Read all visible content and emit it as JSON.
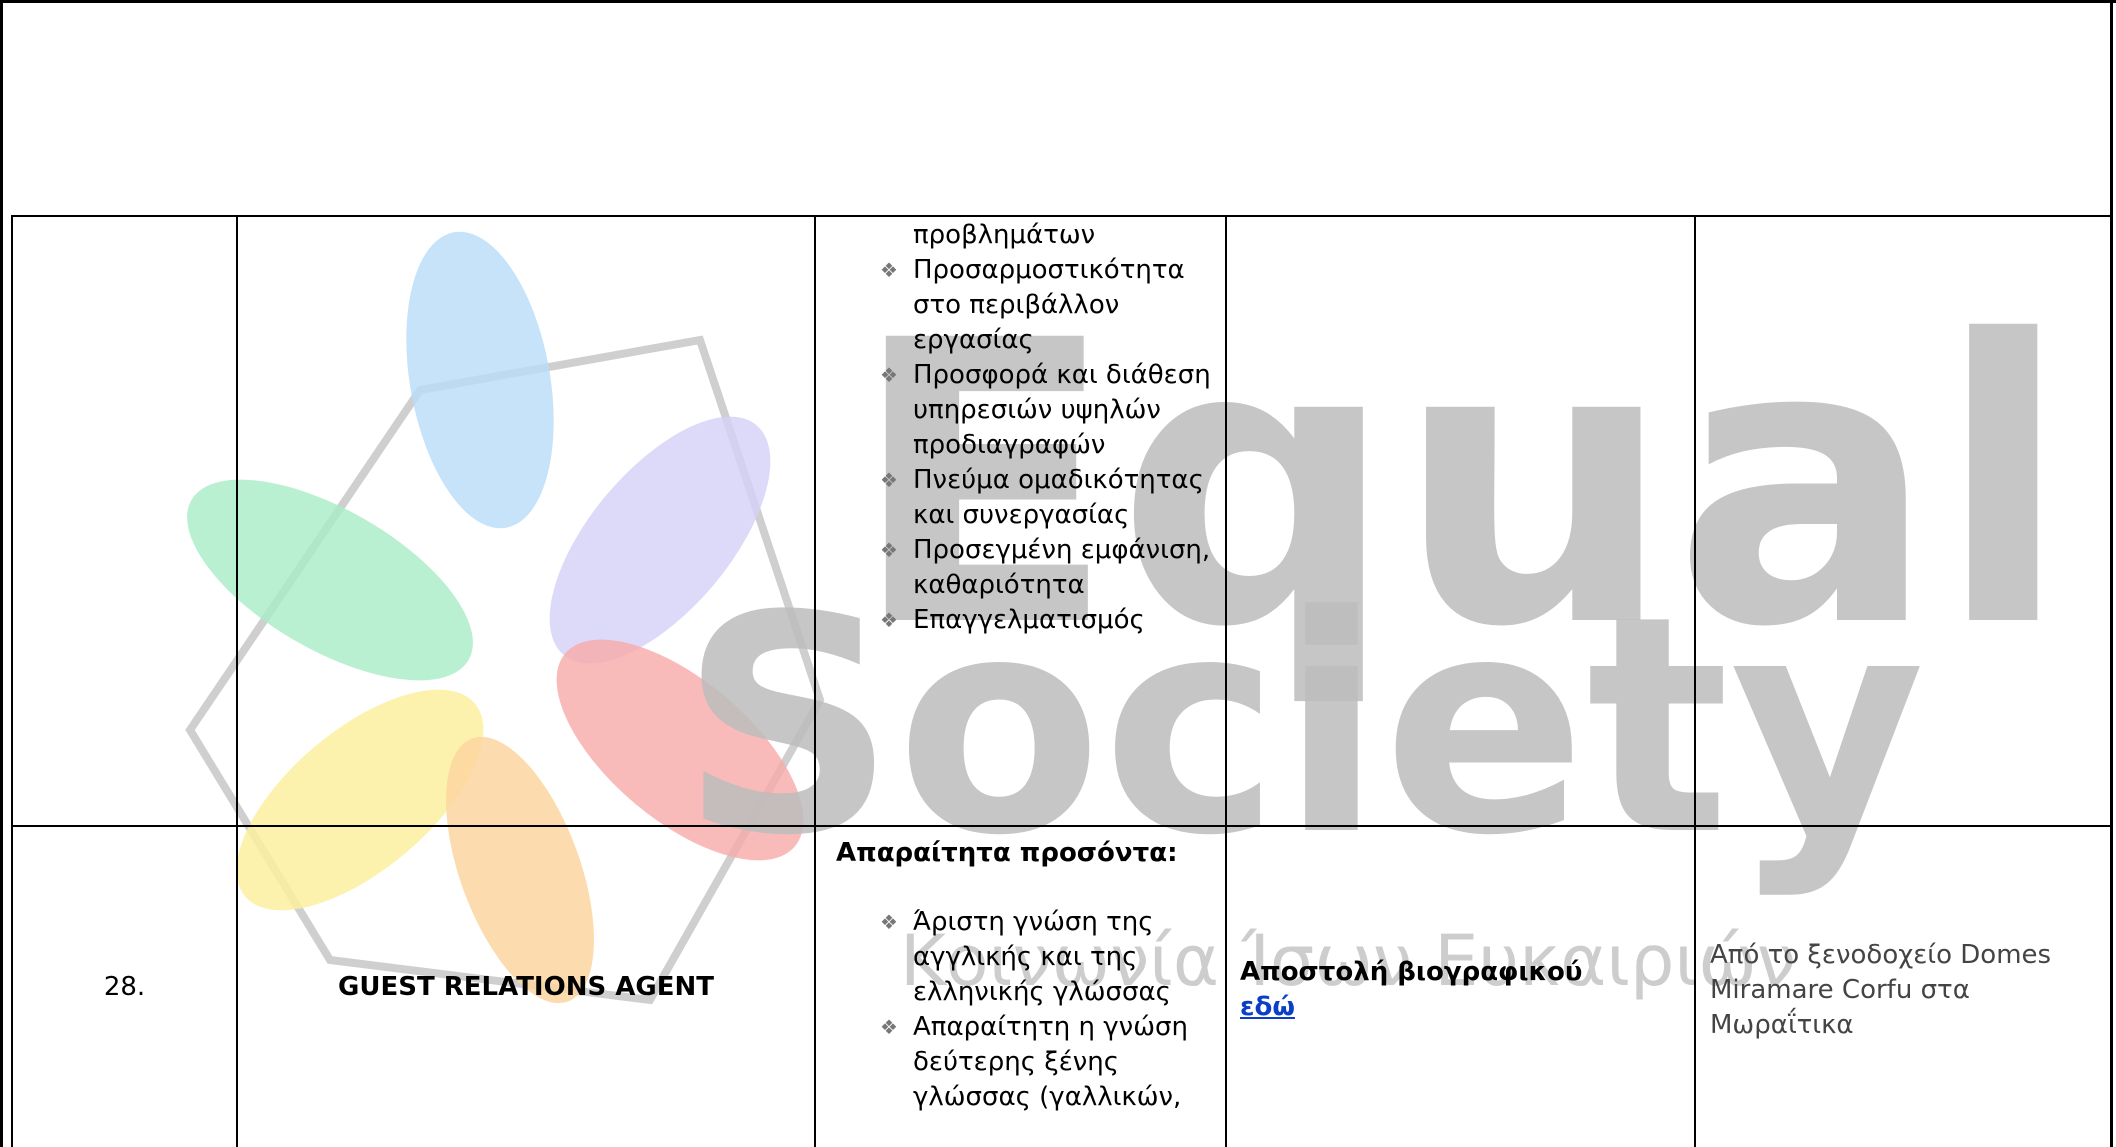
{
  "watermark": {
    "word1": "Equal",
    "word2": "Society",
    "tagline": "Κοινωνία Ίσων Ευκαιριών"
  },
  "table": {
    "rows": [
      {
        "requirements": [
          "προβλημάτων",
          "Προσαρμοστικότητα στο περιβάλλον εργασίας",
          "Προσφορά και διάθεση υπηρεσιών υψηλών προδιαγραφών",
          "Πνεύμα ομαδικότητας και συνεργασίας",
          "Προσεγμένη εμφάνιση, καθαριότητα",
          "Επαγγελματισμός"
        ]
      },
      {
        "number": "28.",
        "title": "GUEST RELATIONS AGENT",
        "requirements_heading": "Απαραίτητα προσόντα:",
        "requirements": [
          "Άριστη γνώση της αγγλικής και της ελληνικής γλώσσας",
          "Απαραίτητη η γνώση δεύτερης ξένης γλώσσας (γαλλικών,"
        ],
        "apply_text": "Αποστολή βιογραφικού",
        "apply_link": "εδώ",
        "location": "Από το ξενοδοχείο Domes Miramare Corfu στα Μωραΐτικα"
      }
    ]
  }
}
